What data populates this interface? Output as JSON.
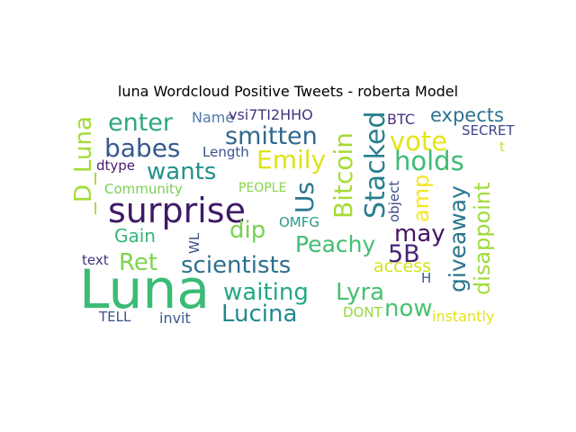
{
  "title": "luna Wordcloud Positive Tweets - roberta Model",
  "words": [
    {
      "text": "Luna",
      "color": "#3bbb75"
    },
    {
      "text": "surprise",
      "color": "#3e1a66"
    },
    {
      "text": "_D_Luna",
      "color": "#a2da37"
    },
    {
      "text": "enter",
      "color": "#2fa582"
    },
    {
      "text": "babes",
      "color": "#38598c"
    },
    {
      "text": "Name",
      "color": "#4f78a8"
    },
    {
      "text": "vsi7TI2HHO",
      "color": "#43367f"
    },
    {
      "text": "smitten",
      "color": "#31678e"
    },
    {
      "text": "Emily",
      "color": "#dde318"
    },
    {
      "text": "wants",
      "color": "#21918c"
    },
    {
      "text": "Length",
      "color": "#3b528b"
    },
    {
      "text": "dtype",
      "color": "#481a6c"
    },
    {
      "text": "Community",
      "color": "#7ad151"
    },
    {
      "text": "PEOPLE",
      "color": "#86d549"
    },
    {
      "text": "Us",
      "color": "#2a788e"
    },
    {
      "text": "Bitcoin",
      "color": "#a5db36"
    },
    {
      "text": "Stacked",
      "color": "#277f8e"
    },
    {
      "text": "BTC",
      "color": "#463480"
    },
    {
      "text": "expects",
      "color": "#2c728e"
    },
    {
      "text": "SECRET",
      "color": "#3f4788"
    },
    {
      "text": "vote",
      "color": "#e5e419"
    },
    {
      "text": "holds",
      "color": "#3dbc74"
    },
    {
      "text": "object",
      "color": "#3e4c8a"
    },
    {
      "text": "amp",
      "color": "#f6e620"
    },
    {
      "text": "t",
      "color": "#cde11d"
    },
    {
      "text": "disappoint",
      "color": "#a0da39"
    },
    {
      "text": "giveaway",
      "color": "#2a768e"
    },
    {
      "text": "dip",
      "color": "#7ad151"
    },
    {
      "text": "OMFG",
      "color": "#2a9a8a"
    },
    {
      "text": "Gain",
      "color": "#35b779"
    },
    {
      "text": "WL",
      "color": "#3c4f8a"
    },
    {
      "text": "Peachy",
      "color": "#42be71"
    },
    {
      "text": "may",
      "color": "#471365"
    },
    {
      "text": "5B",
      "color": "#482475"
    },
    {
      "text": "Ret",
      "color": "#7fd34e"
    },
    {
      "text": "text",
      "color": "#46327e"
    },
    {
      "text": "scientists",
      "color": "#2e6e8e"
    },
    {
      "text": "access",
      "color": "#d5e21a"
    },
    {
      "text": "H",
      "color": "#375b8d"
    },
    {
      "text": "waiting",
      "color": "#22a884"
    },
    {
      "text": "Lyra",
      "color": "#46c06f"
    },
    {
      "text": "now",
      "color": "#4ac16d"
    },
    {
      "text": "Lucina",
      "color": "#23898e"
    },
    {
      "text": "TELL",
      "color": "#3a538b"
    },
    {
      "text": "invit",
      "color": "#365c8d"
    },
    {
      "text": "DONT",
      "color": "#95d840"
    },
    {
      "text": "instantly",
      "color": "#e2e418"
    }
  ]
}
